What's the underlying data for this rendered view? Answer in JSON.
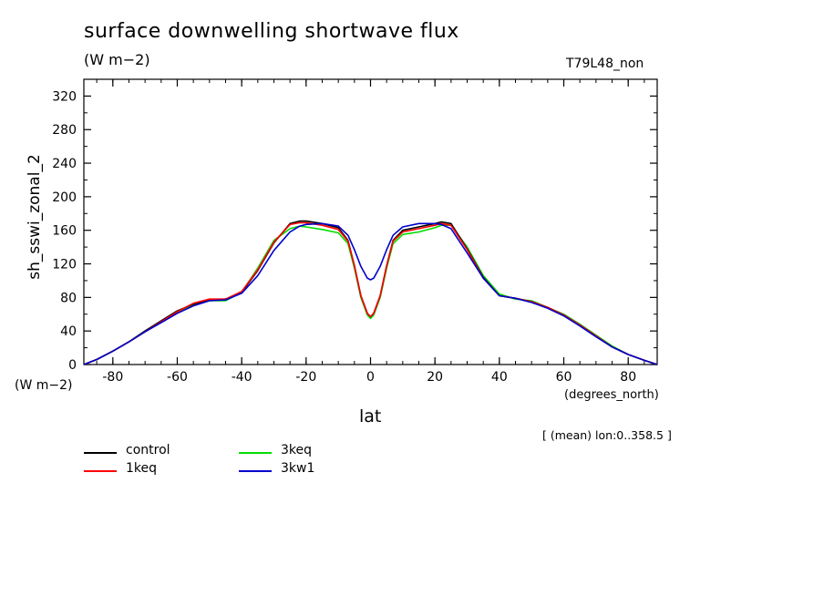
{
  "header": {
    "title": "surface downwelling shortwave flux",
    "units": "(W m−2)",
    "run_name": "T79L48_non"
  },
  "axes_text": {
    "y_label": "sh_sswi_zonal_2",
    "y_units": "(W m−2)",
    "x_label": "lat",
    "x_units": "(degrees_north)",
    "note": "[ (mean) lon:0..358.5 ]"
  },
  "colors": {
    "control": "#000000",
    "1keq": "#ff0000",
    "3keq": "#00dd00",
    "3kw1": "#0000cc"
  },
  "chart_data": {
    "type": "line",
    "title": "surface downwelling shortwave flux",
    "subtitle": "(W m−2)",
    "xlabel": "lat",
    "ylabel": "sh_sswi_zonal_2",
    "xlim": [
      -89,
      89
    ],
    "ylim": [
      0,
      340
    ],
    "xticks": [
      "-80",
      "-60",
      "-40",
      "-20",
      "0",
      "20",
      "40",
      "60",
      "80"
    ],
    "yticks": [
      "0",
      "40",
      "80",
      "120",
      "160",
      "200",
      "240",
      "280",
      "320"
    ],
    "legend_position": "bottom-left",
    "x": [
      -89,
      -85,
      -80,
      -75,
      -70,
      -65,
      -60,
      -55,
      -50,
      -45,
      -40,
      -35,
      -30,
      -25,
      -22,
      -20,
      -15,
      -10,
      -7,
      -5,
      -3,
      -1,
      0,
      1,
      3,
      5,
      7,
      10,
      15,
      20,
      22,
      25,
      30,
      35,
      40,
      45,
      50,
      55,
      60,
      65,
      70,
      75,
      80,
      85,
      89
    ],
    "series": [
      {
        "name": "control",
        "color": "#000000",
        "values": [
          0,
          6,
          16,
          27,
          40,
          52,
          64,
          72,
          77,
          78,
          86,
          112,
          145,
          168,
          171,
          171,
          168,
          163,
          148,
          118,
          82,
          61,
          57,
          61,
          82,
          118,
          148,
          160,
          164,
          168,
          170,
          168,
          138,
          104,
          82,
          79,
          75,
          68,
          59,
          47,
          34,
          21,
          12,
          5,
          0
        ]
      },
      {
        "name": "1keq",
        "color": "#ff0000",
        "values": [
          0,
          6,
          16,
          27,
          39,
          51,
          63,
          73,
          78,
          78,
          87,
          113,
          146,
          167,
          169,
          169,
          166,
          161,
          147,
          118,
          82,
          61,
          57,
          61,
          82,
          118,
          147,
          158,
          162,
          166,
          168,
          166,
          137,
          103,
          82,
          79,
          75,
          68,
          59,
          47,
          34,
          21,
          12,
          5,
          0
        ]
      },
      {
        "name": "3keq",
        "color": "#00dd00",
        "values": [
          0,
          6,
          16,
          27,
          39,
          51,
          62,
          71,
          76,
          76,
          86,
          115,
          148,
          162,
          165,
          164,
          161,
          157,
          144,
          115,
          80,
          59,
          55,
          59,
          80,
          115,
          144,
          155,
          158,
          163,
          166,
          166,
          140,
          106,
          84,
          78,
          76,
          68,
          60,
          48,
          35,
          22,
          12,
          5,
          0
        ]
      },
      {
        "name": "3kw1",
        "color": "#0000cc",
        "values": [
          0,
          6,
          16,
          27,
          39,
          50,
          61,
          70,
          76,
          77,
          85,
          106,
          136,
          158,
          165,
          167,
          168,
          165,
          154,
          137,
          117,
          103,
          101,
          103,
          117,
          137,
          154,
          164,
          168,
          168,
          167,
          162,
          133,
          103,
          82,
          79,
          74,
          67,
          58,
          46,
          33,
          21,
          12,
          5,
          0
        ]
      }
    ]
  }
}
